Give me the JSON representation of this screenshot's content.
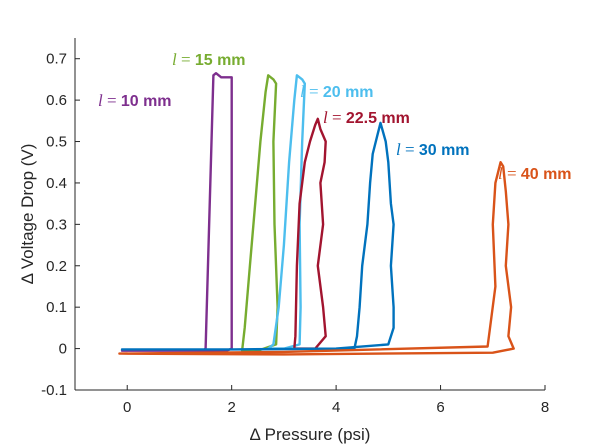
{
  "chart_data": {
    "type": "line",
    "title": "",
    "xlabel": "Δ Pressure (psi)",
    "ylabel": "Δ Voltage Drop (V)",
    "xlim": [
      -1,
      8
    ],
    "ylim": [
      -0.1,
      0.75
    ],
    "xticks": [
      "0",
      "2",
      "4",
      "6",
      "8"
    ],
    "xtick_values": [
      0,
      2,
      4,
      6,
      8
    ],
    "yticks": [
      "-0.1",
      "0",
      "0.1",
      "0.2",
      "0.3",
      "0.4",
      "0.5",
      "0.6",
      "0.7"
    ],
    "ytick_values": [
      -0.1,
      0,
      0.1,
      0.2,
      0.3,
      0.4,
      0.5,
      0.6,
      0.7
    ],
    "grid": false,
    "series": [
      {
        "name": "l = 10 mm",
        "label_var": "l",
        "label_eq": "=",
        "label_value": "10 mm",
        "color": "#7e2f8e",
        "points": [
          [
            -0.1,
            -0.005
          ],
          [
            1.0,
            -0.005
          ],
          [
            1.45,
            -0.005
          ],
          [
            1.5,
            0.0
          ],
          [
            1.65,
            0.66
          ],
          [
            1.7,
            0.665
          ],
          [
            1.8,
            0.655
          ],
          [
            1.9,
            0.655
          ],
          [
            2.0,
            0.655
          ],
          [
            2.0,
            0.3
          ],
          [
            2.0,
            0.0
          ],
          [
            1.9,
            -0.005
          ],
          [
            1.2,
            -0.005
          ],
          [
            -0.1,
            -0.005
          ]
        ]
      },
      {
        "name": "l = 15 mm",
        "label_var": "l",
        "label_eq": "=",
        "label_value": "15 mm",
        "color": "#77ac30",
        "points": [
          [
            2.2,
            -0.005
          ],
          [
            2.25,
            0.05
          ],
          [
            2.35,
            0.2
          ],
          [
            2.45,
            0.35
          ],
          [
            2.55,
            0.5
          ],
          [
            2.65,
            0.62
          ],
          [
            2.7,
            0.66
          ],
          [
            2.8,
            0.65
          ],
          [
            2.85,
            0.64
          ],
          [
            2.8,
            0.5
          ],
          [
            2.82,
            0.3
          ],
          [
            2.88,
            0.1
          ],
          [
            2.85,
            0.01
          ],
          [
            2.5,
            -0.005
          ],
          [
            2.2,
            -0.005
          ]
        ]
      },
      {
        "name": "l = 20 mm",
        "label_var": "l",
        "label_eq": "=",
        "label_value": "20 mm",
        "color": "#4dbeee",
        "points": [
          [
            2.7,
            0.0
          ],
          [
            2.8,
            0.01
          ],
          [
            2.9,
            0.1
          ],
          [
            3.0,
            0.25
          ],
          [
            3.1,
            0.45
          ],
          [
            3.2,
            0.6
          ],
          [
            3.25,
            0.66
          ],
          [
            3.35,
            0.65
          ],
          [
            3.4,
            0.64
          ],
          [
            3.35,
            0.5
          ],
          [
            3.3,
            0.3
          ],
          [
            3.32,
            0.1
          ],
          [
            3.3,
            0.01
          ],
          [
            3.0,
            0.0
          ],
          [
            2.7,
            0.0
          ]
        ]
      },
      {
        "name": "l = 22.5 mm",
        "label_var": "l",
        "label_eq": "=",
        "label_value": "22.5 mm",
        "color": "#a2142f",
        "points": [
          [
            3.2,
            0.0
          ],
          [
            3.22,
            0.03
          ],
          [
            3.25,
            0.2
          ],
          [
            3.3,
            0.35
          ],
          [
            3.4,
            0.45
          ],
          [
            3.5,
            0.5
          ],
          [
            3.6,
            0.54
          ],
          [
            3.65,
            0.555
          ],
          [
            3.7,
            0.53
          ],
          [
            3.8,
            0.5
          ],
          [
            3.78,
            0.45
          ],
          [
            3.7,
            0.4
          ],
          [
            3.75,
            0.3
          ],
          [
            3.65,
            0.2
          ],
          [
            3.75,
            0.1
          ],
          [
            3.8,
            0.03
          ],
          [
            3.6,
            0.0
          ],
          [
            3.2,
            0.0
          ]
        ]
      },
      {
        "name": "l = 30 mm",
        "label_var": "l",
        "label_eq": "=",
        "label_value": "30 mm",
        "color": "#0072bd",
        "points": [
          [
            -0.1,
            -0.002
          ],
          [
            2.0,
            -0.002
          ],
          [
            4.35,
            0.0
          ],
          [
            4.4,
            0.03
          ],
          [
            4.45,
            0.1
          ],
          [
            4.5,
            0.2
          ],
          [
            4.6,
            0.3
          ],
          [
            4.65,
            0.4
          ],
          [
            4.7,
            0.47
          ],
          [
            4.8,
            0.52
          ],
          [
            4.85,
            0.545
          ],
          [
            4.95,
            0.5
          ],
          [
            5.0,
            0.45
          ],
          [
            5.05,
            0.35
          ],
          [
            5.1,
            0.3
          ],
          [
            5.05,
            0.2
          ],
          [
            5.1,
            0.1
          ],
          [
            5.1,
            0.05
          ],
          [
            5.0,
            0.01
          ],
          [
            4.0,
            0.0
          ],
          [
            2.0,
            -0.002
          ],
          [
            -0.1,
            -0.002
          ]
        ]
      },
      {
        "name": "l = 40 mm",
        "label_var": "l",
        "label_eq": "=",
        "label_value": "40 mm",
        "color": "#d95319",
        "points": [
          [
            -0.15,
            -0.012
          ],
          [
            3.0,
            -0.008
          ],
          [
            6.9,
            0.005
          ],
          [
            7.05,
            0.15
          ],
          [
            7.0,
            0.3
          ],
          [
            7.05,
            0.4
          ],
          [
            7.15,
            0.45
          ],
          [
            7.2,
            0.44
          ],
          [
            7.25,
            0.38
          ],
          [
            7.3,
            0.3
          ],
          [
            7.25,
            0.2
          ],
          [
            7.35,
            0.1
          ],
          [
            7.3,
            0.03
          ],
          [
            7.4,
            0.0
          ],
          [
            7.0,
            -0.01
          ],
          [
            3.0,
            -0.014
          ],
          [
            -0.15,
            -0.012
          ]
        ]
      }
    ]
  }
}
